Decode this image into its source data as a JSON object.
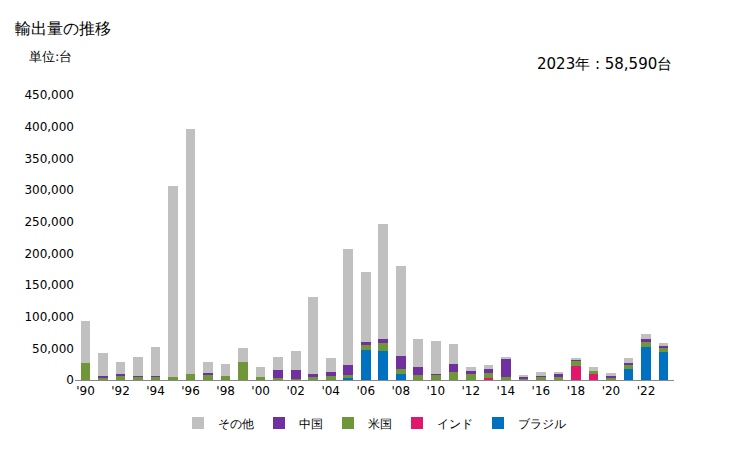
{
  "chart_data": {
    "type": "bar",
    "stacked": true,
    "title": "輸出量の推移",
    "y_label": "単位:台",
    "annotation": "2023年 : 58,590台",
    "grid": false,
    "legend": "bottom",
    "categories": [
      "'90",
      null,
      "'92",
      null,
      "'94",
      null,
      "'96",
      null,
      "'98",
      null,
      "'00",
      null,
      "'02",
      null,
      "'04",
      null,
      "'06",
      null,
      "'08",
      null,
      "'10",
      null,
      "'12",
      null,
      "'14",
      null,
      "'16",
      null,
      "'18",
      null,
      "'20",
      null,
      "'22",
      null
    ],
    "series": [
      {
        "name": "ブラジル",
        "color": "#0070c0",
        "values": [
          0,
          0,
          0,
          0,
          0,
          0,
          0,
          0,
          0,
          0,
          0,
          0,
          0,
          0,
          0,
          3000,
          48000,
          46000,
          10000,
          0,
          0,
          0,
          0,
          0,
          0,
          0,
          0,
          0,
          0,
          0,
          0,
          18000,
          52000,
          45000
        ]
      },
      {
        "name": "インド",
        "color": "#e0176b",
        "values": [
          0,
          0,
          0,
          0,
          0,
          0,
          0,
          0,
          0,
          0,
          0,
          0,
          0,
          0,
          0,
          0,
          0,
          0,
          0,
          0,
          0,
          0,
          0,
          3000,
          0,
          0,
          0,
          0,
          22000,
          9000,
          0,
          0,
          0,
          0
        ]
      },
      {
        "name": "米国",
        "color": "#70963a",
        "values": [
          27000,
          4000,
          7000,
          5000,
          5000,
          5000,
          10000,
          8000,
          7000,
          28000,
          5000,
          3000,
          2000,
          4000,
          6000,
          5000,
          8000,
          12000,
          8000,
          8000,
          8000,
          12000,
          10000,
          8000,
          5000,
          3000,
          5000,
          6000,
          8000,
          6000,
          4000,
          7000,
          8000,
          6000
        ]
      },
      {
        "name": "中国",
        "color": "#7030a0",
        "values": [
          0,
          2000,
          2000,
          2000,
          2000,
          0,
          0,
          3000,
          0,
          0,
          0,
          13000,
          14000,
          5000,
          7000,
          15000,
          4000,
          7000,
          20000,
          12000,
          2000,
          13000,
          5000,
          7000,
          28000,
          2000,
          2000,
          3000,
          2000,
          0,
          2000,
          2000,
          5000,
          3000
        ]
      },
      {
        "name": "その他",
        "color": "#c0c0c0",
        "values": [
          66000,
          36000,
          20000,
          30000,
          45000,
          302000,
          386000,
          18000,
          18000,
          22000,
          15000,
          21000,
          30000,
          122000,
          22000,
          184000,
          110000,
          182000,
          142000,
          44000,
          52000,
          32000,
          5000,
          5000,
          4000,
          3000,
          5000,
          4000,
          3000,
          5000,
          5000,
          8000,
          8000,
          4590
        ]
      }
    ],
    "ylim": [
      0,
      450000
    ],
    "yticks": [
      0,
      {
        "value": 50000,
        "label": "50,000"
      },
      {
        "value": 100000,
        "label": "100,000"
      },
      {
        "value": 150000,
        "label": "150,000"
      },
      {
        "value": 200000,
        "label": "200,000"
      },
      {
        "value": 250000,
        "label": "250,000"
      },
      {
        "value": 300000,
        "label": "300,000"
      },
      {
        "value": 350000,
        "label": "350,000"
      },
      {
        "value": 400000,
        "label": "400,000"
      },
      {
        "value": 450000,
        "label": "450,000"
      }
    ]
  }
}
